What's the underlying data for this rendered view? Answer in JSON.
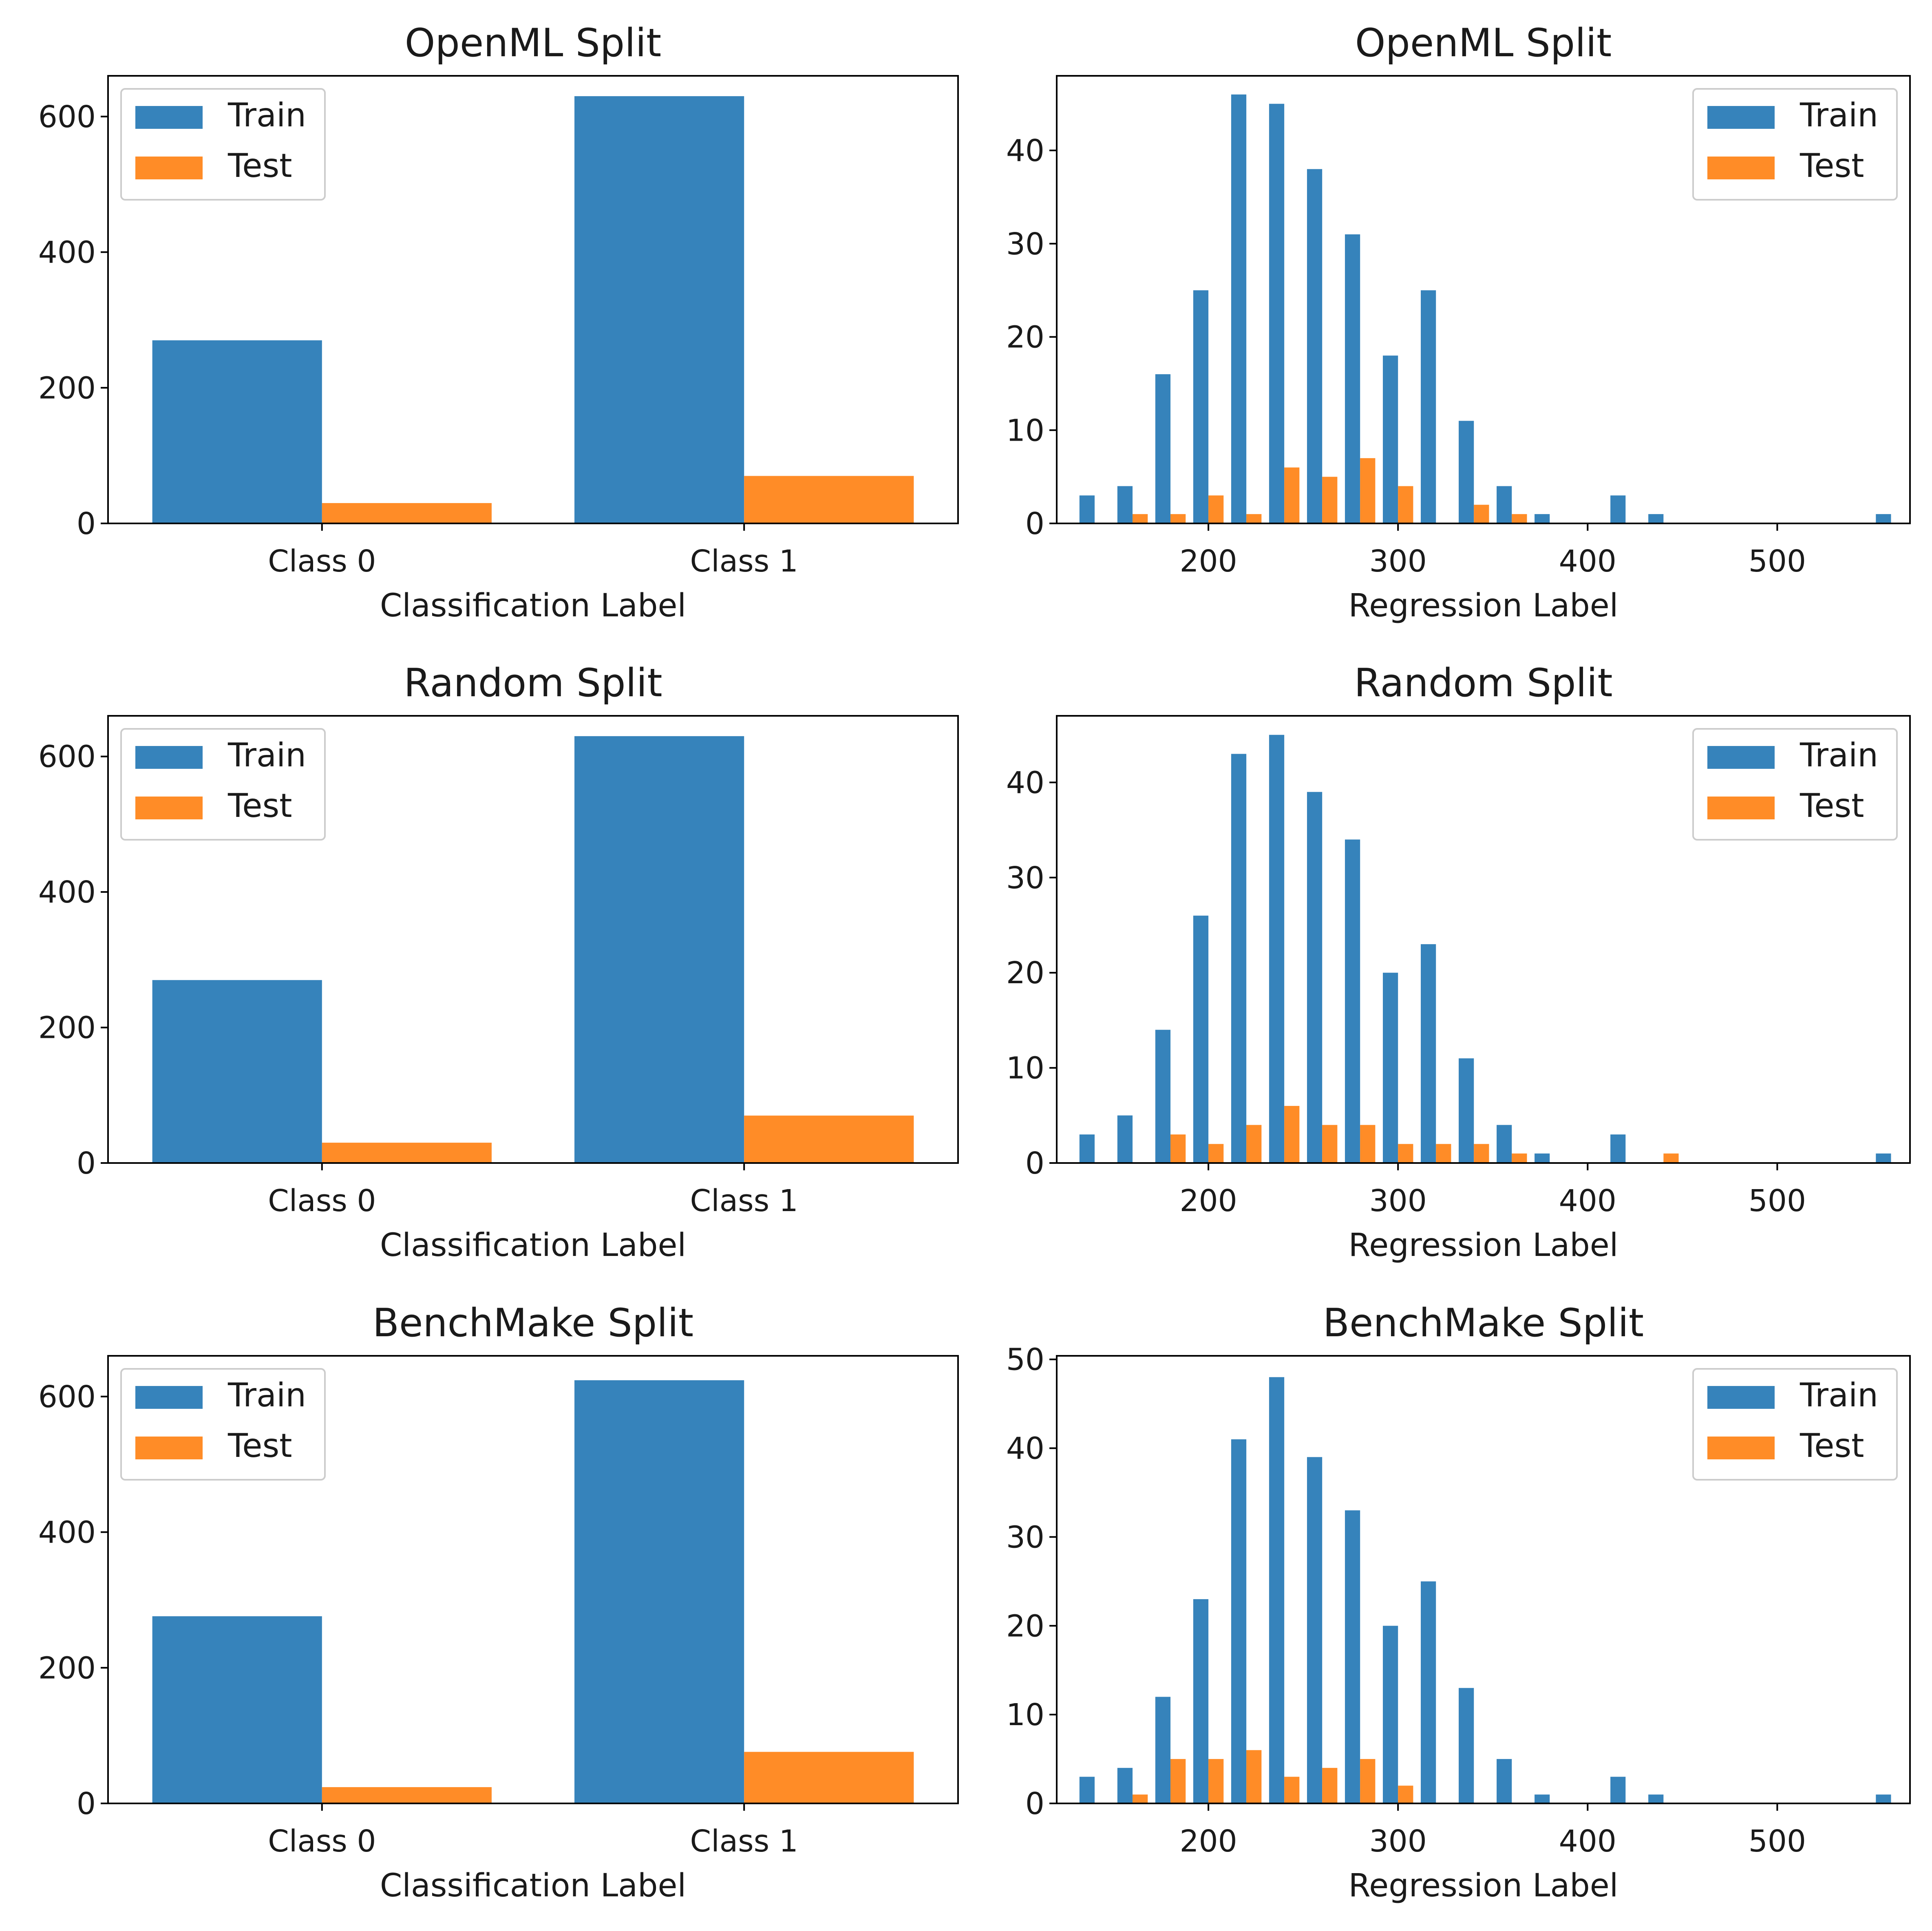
{
  "chart_data": [
    {
      "type": "bar",
      "title": "OpenML Split",
      "xlabel": "Classification Label",
      "ylabel": "",
      "categories": [
        "Class 0",
        "Class 1"
      ],
      "series": [
        {
          "name": "Train",
          "values": [
            270,
            630
          ]
        },
        {
          "name": "Test",
          "values": [
            30,
            70
          ]
        }
      ],
      "ylim": [
        0,
        660
      ],
      "yticks": [
        0,
        200,
        400,
        600
      ],
      "legend": "top-left"
    },
    {
      "type": "bar",
      "title": "OpenML Split",
      "xlabel": "Regression Label",
      "ylabel": "",
      "bin_edges": [
        130,
        150,
        170,
        190,
        210,
        230,
        250,
        270,
        290,
        310,
        330,
        350,
        370,
        390,
        410,
        430,
        450,
        470,
        490,
        510,
        530,
        550,
        570
      ],
      "series": [
        {
          "name": "Train",
          "values": [
            3,
            4,
            16,
            25,
            46,
            45,
            38,
            31,
            18,
            25,
            11,
            4,
            1,
            0,
            3,
            1,
            0,
            0,
            0,
            0,
            0,
            1
          ]
        },
        {
          "name": "Test",
          "values": [
            0,
            1,
            1,
            3,
            1,
            6,
            5,
            7,
            4,
            0,
            2,
            1,
            0,
            0,
            0,
            0,
            0,
            0,
            0,
            0,
            0,
            0
          ]
        }
      ],
      "xlim": [
        120,
        570
      ],
      "xticks": [
        200,
        300,
        400,
        500
      ],
      "ylim": [
        0,
        48
      ],
      "yticks": [
        0,
        10,
        20,
        30,
        40
      ],
      "legend": "top-right"
    },
    {
      "type": "bar",
      "title": "Random Split",
      "xlabel": "Classification Label",
      "ylabel": "",
      "categories": [
        "Class 0",
        "Class 1"
      ],
      "series": [
        {
          "name": "Train",
          "values": [
            270,
            630
          ]
        },
        {
          "name": "Test",
          "values": [
            30,
            70
          ]
        }
      ],
      "ylim": [
        0,
        660
      ],
      "yticks": [
        0,
        200,
        400,
        600
      ],
      "legend": "top-left"
    },
    {
      "type": "bar",
      "title": "Random Split",
      "xlabel": "Regression Label",
      "ylabel": "",
      "bin_edges": [
        130,
        150,
        170,
        190,
        210,
        230,
        250,
        270,
        290,
        310,
        330,
        350,
        370,
        390,
        410,
        430,
        450,
        470,
        490,
        510,
        530,
        550,
        570
      ],
      "series": [
        {
          "name": "Train",
          "values": [
            3,
            5,
            14,
            26,
            43,
            45,
            39,
            34,
            20,
            23,
            11,
            4,
            1,
            0,
            3,
            0,
            0,
            0,
            0,
            0,
            0,
            1
          ]
        },
        {
          "name": "Test",
          "values": [
            0,
            0,
            3,
            2,
            4,
            6,
            4,
            4,
            2,
            2,
            2,
            1,
            0,
            0,
            0,
            1,
            0,
            0,
            0,
            0,
            0,
            0
          ]
        }
      ],
      "xlim": [
        120,
        570
      ],
      "xticks": [
        200,
        300,
        400,
        500
      ],
      "ylim": [
        0,
        47
      ],
      "yticks": [
        0,
        10,
        20,
        30,
        40
      ],
      "legend": "top-right"
    },
    {
      "type": "bar",
      "title": "BenchMake Split",
      "xlabel": "Classification Label",
      "ylabel": "",
      "categories": [
        "Class 0",
        "Class 1"
      ],
      "series": [
        {
          "name": "Train",
          "values": [
            276,
            624
          ]
        },
        {
          "name": "Test",
          "values": [
            24,
            76
          ]
        }
      ],
      "ylim": [
        0,
        660
      ],
      "yticks": [
        0,
        200,
        400,
        600
      ],
      "legend": "top-left"
    },
    {
      "type": "bar",
      "title": "BenchMake Split",
      "xlabel": "Regression Label",
      "ylabel": "",
      "bin_edges": [
        130,
        150,
        170,
        190,
        210,
        230,
        250,
        270,
        290,
        310,
        330,
        350,
        370,
        390,
        410,
        430,
        450,
        470,
        490,
        510,
        530,
        550,
        570
      ],
      "series": [
        {
          "name": "Train",
          "values": [
            3,
            4,
            12,
            23,
            41,
            48,
            39,
            33,
            20,
            25,
            13,
            5,
            1,
            0,
            3,
            1,
            0,
            0,
            0,
            0,
            0,
            1
          ]
        },
        {
          "name": "Test",
          "values": [
            0,
            1,
            5,
            5,
            6,
            3,
            4,
            5,
            2,
            0,
            0,
            0,
            0,
            0,
            0,
            0,
            0,
            0,
            0,
            0,
            0,
            0
          ]
        }
      ],
      "xlim": [
        120,
        570
      ],
      "xticks": [
        200,
        300,
        400,
        500
      ],
      "ylim": [
        0,
        50.4
      ],
      "yticks": [
        0,
        10,
        20,
        30,
        40,
        50
      ],
      "legend": "top-right"
    }
  ],
  "colors": {
    "train": "#3683bb",
    "test": "#ff8c27"
  }
}
